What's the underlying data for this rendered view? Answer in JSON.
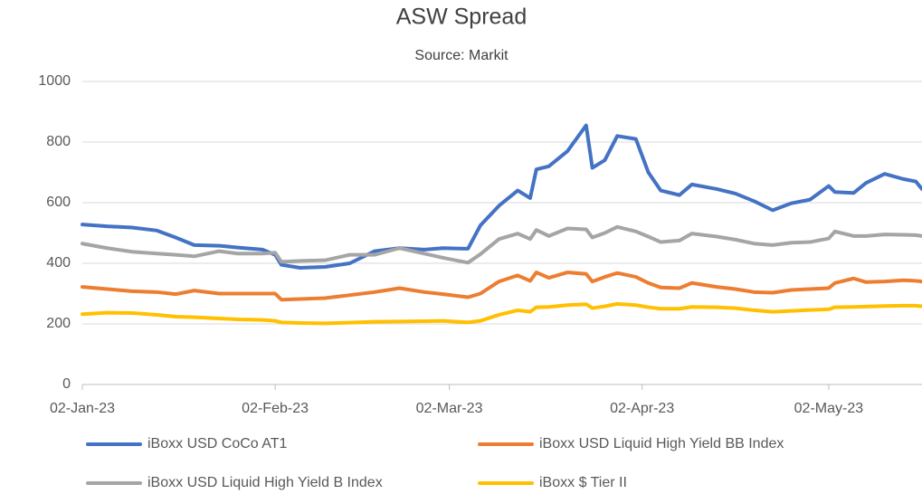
{
  "chart_data": {
    "type": "line",
    "title": "ASW Spread",
    "subtitle": "Source: Markit",
    "x": [
      "2023-01-02",
      "2023-01-06",
      "2023-01-10",
      "2023-01-14",
      "2023-01-17",
      "2023-01-20",
      "2023-01-24",
      "2023-01-27",
      "2023-01-31",
      "2023-02-02",
      "2023-02-03",
      "2023-02-06",
      "2023-02-10",
      "2023-02-14",
      "2023-02-18",
      "2023-02-22",
      "2023-02-26",
      "2023-03-01",
      "2023-03-05",
      "2023-03-07",
      "2023-03-10",
      "2023-03-13",
      "2023-03-15",
      "2023-03-16",
      "2023-03-18",
      "2023-03-21",
      "2023-03-24",
      "2023-03-25",
      "2023-03-27",
      "2023-03-29",
      "2023-04-01",
      "2023-04-03",
      "2023-04-05",
      "2023-04-08",
      "2023-04-10",
      "2023-04-14",
      "2023-04-17",
      "2023-04-20",
      "2023-04-23",
      "2023-04-26",
      "2023-04-29",
      "2023-05-02",
      "2023-05-03",
      "2023-05-06",
      "2023-05-08",
      "2023-05-11",
      "2023-05-14",
      "2023-05-16",
      "2023-05-17"
    ],
    "series": [
      {
        "name": "iBoxx USD CoCo AT1",
        "color": "#4472c4",
        "values": [
          528,
          522,
          518,
          508,
          485,
          460,
          458,
          452,
          445,
          428,
          395,
          385,
          388,
          400,
          440,
          450,
          445,
          450,
          448,
          525,
          590,
          640,
          615,
          710,
          720,
          770,
          855,
          715,
          740,
          820,
          810,
          700,
          640,
          625,
          660,
          645,
          630,
          605,
          575,
          598,
          610,
          655,
          635,
          632,
          665,
          695,
          678,
          670,
          645
        ]
      },
      {
        "name": "iBoxx USD Liquid High Yield BB Index",
        "color": "#ed7d31",
        "values": [
          322,
          315,
          308,
          305,
          298,
          310,
          300,
          300,
          300,
          300,
          280,
          282,
          285,
          295,
          305,
          318,
          305,
          298,
          288,
          300,
          340,
          360,
          342,
          370,
          352,
          370,
          365,
          340,
          355,
          368,
          355,
          335,
          320,
          318,
          335,
          322,
          315,
          305,
          303,
          312,
          315,
          318,
          335,
          350,
          338,
          340,
          344,
          342,
          340
        ]
      },
      {
        "name": "iBoxx USD Liquid High Yield B Index",
        "color": "#a5a5a5",
        "values": [
          465,
          450,
          438,
          432,
          428,
          423,
          440,
          432,
          432,
          435,
          405,
          408,
          410,
          428,
          428,
          450,
          432,
          418,
          402,
          430,
          480,
          498,
          480,
          510,
          490,
          515,
          512,
          485,
          500,
          520,
          505,
          488,
          470,
          475,
          498,
          488,
          478,
          465,
          460,
          468,
          470,
          482,
          505,
          490,
          490,
          495,
          494,
          493,
          490
        ]
      },
      {
        "name": "iBoxx $ Tier II",
        "color": "#ffc000",
        "values": [
          232,
          237,
          236,
          230,
          224,
          222,
          218,
          215,
          213,
          210,
          205,
          203,
          202,
          204,
          207,
          208,
          209,
          210,
          205,
          210,
          230,
          245,
          240,
          255,
          256,
          262,
          265,
          252,
          258,
          266,
          262,
          255,
          250,
          250,
          256,
          255,
          252,
          245,
          240,
          243,
          246,
          248,
          255,
          256,
          257,
          259,
          260,
          260,
          258
        ]
      }
    ],
    "xlim": [
      "2023-01-02",
      "2023-05-17"
    ],
    "xticks": [
      {
        "value": "2023-01-02",
        "label": "02-Jan-23"
      },
      {
        "value": "2023-02-02",
        "label": "02-Feb-23"
      },
      {
        "value": "2023-03-02",
        "label": "02-Mar-23"
      },
      {
        "value": "2023-04-02",
        "label": "02-Apr-23"
      },
      {
        "value": "2023-05-02",
        "label": "02-May-23"
      }
    ],
    "ylim": [
      0,
      1000
    ],
    "yticks": [
      0,
      200,
      400,
      600,
      800,
      1000
    ],
    "grid": true,
    "legend": "bottom"
  }
}
